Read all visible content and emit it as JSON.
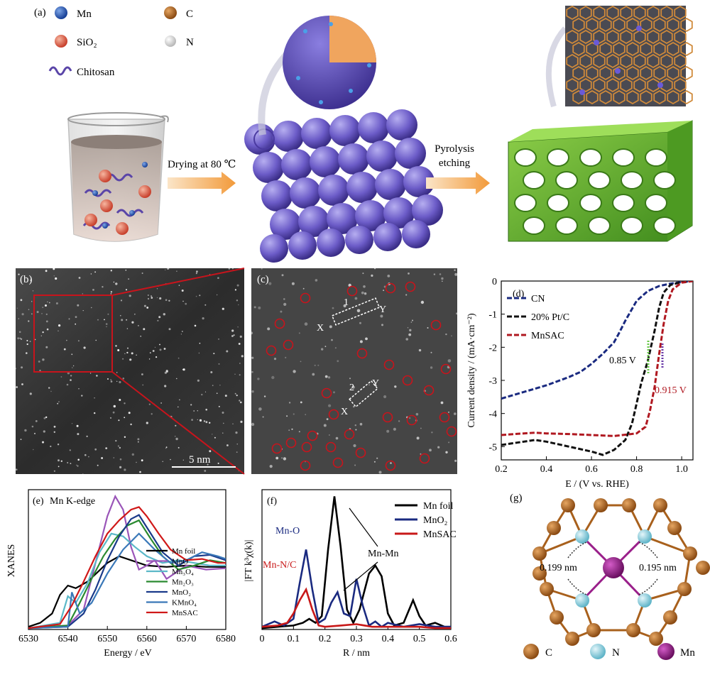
{
  "panel_a": {
    "tag": "(a)",
    "legend": [
      {
        "label": "Mn",
        "color": "#1f4fa8"
      },
      {
        "label": "SiO₂",
        "color": "#d9573f"
      },
      {
        "label": "Chitosan",
        "color": "#5a45a8"
      },
      {
        "label": "C",
        "color": "#a8601c"
      },
      {
        "label": "N",
        "color": "#eeeeee"
      }
    ],
    "step1": "Drying at 80 ℃",
    "step2_line1": "Pyrolysis",
    "step2_line2": "etching"
  },
  "panel_b": {
    "tag": "(b)",
    "scale": "5 nm"
  },
  "panel_c": {
    "tag": "(c)",
    "pairs": [
      {
        "num": "1",
        "x": "X",
        "y": "Y"
      },
      {
        "num": "2",
        "x": "X",
        "y": "Y"
      }
    ]
  },
  "chart_data": [
    {
      "panel": "(d)",
      "type": "line",
      "xlabel": "E / (V vs. RHE)",
      "ylabel": "Current density / (mA·cm⁻²)",
      "xlim": [
        0.2,
        1.05
      ],
      "ylim": [
        -5.4,
        0
      ],
      "xticks": [
        "0.2",
        "0.4",
        "0.6",
        "0.8",
        "1.0"
      ],
      "yticks": [
        "0",
        "-1",
        "-2",
        "-3",
        "-4",
        "-5"
      ],
      "legend_position": "top-left",
      "annotations": [
        "0.85 V",
        "0.915 V"
      ],
      "series": [
        {
          "name": "CN",
          "color": "#1a2a80",
          "x": [
            0.2,
            0.3,
            0.4,
            0.5,
            0.55,
            0.6,
            0.65,
            0.7,
            0.72,
            0.75,
            0.8,
            0.85,
            0.9,
            0.95,
            1.0,
            1.05
          ],
          "y": [
            -3.55,
            -3.35,
            -3.15,
            -2.9,
            -2.75,
            -2.5,
            -2.2,
            -1.85,
            -1.6,
            -1.2,
            -0.6,
            -0.3,
            -0.15,
            -0.08,
            -0.03,
            0
          ]
        },
        {
          "name": "20% Pt/C",
          "color": "#111111",
          "x": [
            0.2,
            0.3,
            0.35,
            0.4,
            0.5,
            0.6,
            0.65,
            0.7,
            0.75,
            0.78,
            0.8,
            0.82,
            0.85,
            0.88,
            0.9,
            0.92,
            0.95,
            1.0,
            1.05
          ],
          "y": [
            -4.95,
            -4.85,
            -4.8,
            -4.85,
            -5.0,
            -5.15,
            -5.25,
            -5.1,
            -4.8,
            -4.3,
            -3.7,
            -3.1,
            -2.4,
            -1.5,
            -0.8,
            -0.35,
            -0.12,
            -0.03,
            0
          ]
        },
        {
          "name": "MnSAC",
          "color": "#b01820",
          "x": [
            0.2,
            0.3,
            0.35,
            0.4,
            0.5,
            0.6,
            0.7,
            0.8,
            0.84,
            0.86,
            0.88,
            0.9,
            0.92,
            0.94,
            0.96,
            1.0,
            1.05
          ],
          "y": [
            -4.65,
            -4.6,
            -4.58,
            -4.6,
            -4.62,
            -4.65,
            -4.68,
            -4.6,
            -4.4,
            -3.9,
            -3.2,
            -2.2,
            -1.3,
            -0.6,
            -0.25,
            -0.05,
            0
          ]
        }
      ]
    },
    {
      "panel": "(e)",
      "title": "Mn K-edge",
      "type": "line",
      "xlabel": "Energy / eV",
      "ylabel": "XANES",
      "xlim": [
        6530,
        6580
      ],
      "ylim": [
        0,
        1.05
      ],
      "xticks": [
        "6530",
        "6540",
        "6550",
        "6560",
        "6570",
        "6580"
      ],
      "legend_position": "bottom-right",
      "series": [
        {
          "name": "Mn foil",
          "color": "#000000",
          "x": [
            6530,
            6533,
            6536,
            6538,
            6540,
            6542,
            6545,
            6550,
            6553,
            6556,
            6560,
            6565,
            6570,
            6575,
            6580
          ],
          "y": [
            0.02,
            0.05,
            0.12,
            0.26,
            0.33,
            0.31,
            0.36,
            0.5,
            0.55,
            0.52,
            0.48,
            0.47,
            0.48,
            0.47,
            0.47
          ]
        },
        {
          "name": "MnO",
          "color": "#9a55b8",
          "x": [
            6530,
            6540,
            6544,
            6547,
            6550,
            6552,
            6554,
            6556,
            6558,
            6560,
            6562,
            6565,
            6570,
            6575,
            6580
          ],
          "y": [
            0.01,
            0.03,
            0.15,
            0.5,
            0.85,
            1.0,
            0.9,
            0.62,
            0.45,
            0.48,
            0.52,
            0.38,
            0.48,
            0.45,
            0.46
          ]
        },
        {
          "name": "Mn₃O₄",
          "color": "#5bb8c8",
          "x": [
            6530,
            6538,
            6540,
            6542,
            6545,
            6548,
            6551,
            6554,
            6557,
            6560,
            6564,
            6568,
            6572,
            6576,
            6580
          ],
          "y": [
            0.01,
            0.05,
            0.25,
            0.2,
            0.35,
            0.58,
            0.72,
            0.7,
            0.62,
            0.55,
            0.5,
            0.52,
            0.5,
            0.48,
            0.48
          ]
        },
        {
          "name": "Mn₂O₃",
          "color": "#2a8a30",
          "x": [
            6530,
            6540,
            6543,
            6546,
            6549,
            6552,
            6555,
            6558,
            6561,
            6564,
            6568,
            6572,
            6576,
            6580
          ],
          "y": [
            0.01,
            0.03,
            0.2,
            0.38,
            0.55,
            0.68,
            0.78,
            0.82,
            0.68,
            0.55,
            0.45,
            0.48,
            0.52,
            0.5
          ]
        },
        {
          "name": "MnO₂",
          "color": "#1a3a8a",
          "x": [
            6530,
            6540,
            6544,
            6547,
            6550,
            6553,
            6556,
            6558,
            6561,
            6564,
            6568,
            6572,
            6576,
            6580
          ],
          "y": [
            0.01,
            0.02,
            0.12,
            0.3,
            0.52,
            0.7,
            0.83,
            0.86,
            0.72,
            0.58,
            0.48,
            0.55,
            0.56,
            0.52
          ]
        },
        {
          "name": "KMnO₄",
          "color": "#3a78b8",
          "x": [
            6530,
            6540,
            6541,
            6543,
            6546,
            6550,
            6554,
            6558,
            6562,
            6566,
            6570,
            6574,
            6578,
            6580
          ],
          "y": [
            0.01,
            0.02,
            0.28,
            0.12,
            0.2,
            0.42,
            0.6,
            0.72,
            0.6,
            0.5,
            0.52,
            0.58,
            0.55,
            0.53
          ]
        },
        {
          "name": "MnSAC",
          "color": "#d01818",
          "x": [
            6530,
            6538,
            6541,
            6544,
            6547,
            6550,
            6553,
            6556,
            6558,
            6560,
            6563,
            6566,
            6570,
            6574,
            6578,
            6580
          ],
          "y": [
            0.01,
            0.04,
            0.18,
            0.36,
            0.55,
            0.72,
            0.82,
            0.9,
            0.92,
            0.85,
            0.72,
            0.6,
            0.52,
            0.53,
            0.5,
            0.5
          ]
        }
      ]
    },
    {
      "panel": "(f)",
      "type": "line",
      "xlabel": "R / nm",
      "ylabel": "|FT k³χ(k)|",
      "xlim": [
        0,
        0.6
      ],
      "ylim": [
        0,
        1.05
      ],
      "xticks": [
        "0",
        "0.1",
        "0.2",
        "0.3",
        "0.4",
        "0.5",
        "0.6"
      ],
      "legend_position": "top-right",
      "annotations": [
        "Mn-O",
        "Mn-N/C",
        "Mn-Mn"
      ],
      "series": [
        {
          "name": "Mn foil",
          "color": "#000000",
          "x": [
            0,
            0.05,
            0.1,
            0.13,
            0.15,
            0.17,
            0.19,
            0.21,
            0.23,
            0.25,
            0.27,
            0.29,
            0.31,
            0.34,
            0.36,
            0.38,
            0.4,
            0.42,
            0.45,
            0.48,
            0.5,
            0.52,
            0.55,
            0.58,
            0.6
          ],
          "y": [
            0.01,
            0.02,
            0.03,
            0.05,
            0.08,
            0.05,
            0.1,
            0.6,
            1.0,
            0.62,
            0.15,
            0.05,
            0.15,
            0.42,
            0.48,
            0.4,
            0.12,
            0.03,
            0.05,
            0.22,
            0.1,
            0.03,
            0.05,
            0.02,
            0.02
          ]
        },
        {
          "name": "MnO₂",
          "color": "#1a2a80",
          "x": [
            0,
            0.04,
            0.07,
            0.1,
            0.12,
            0.14,
            0.16,
            0.18,
            0.2,
            0.22,
            0.24,
            0.26,
            0.28,
            0.3,
            0.32,
            0.34,
            0.36,
            0.38,
            0.4,
            0.45,
            0.5,
            0.55,
            0.6
          ],
          "y": [
            0.02,
            0.06,
            0.03,
            0.08,
            0.35,
            0.6,
            0.3,
            0.05,
            0.08,
            0.2,
            0.28,
            0.12,
            0.1,
            0.38,
            0.18,
            0.03,
            0.06,
            0.02,
            0.05,
            0.02,
            0.04,
            0.02,
            0.02
          ]
        },
        {
          "name": "MnSAC",
          "color": "#c81818",
          "x": [
            0,
            0.05,
            0.08,
            0.1,
            0.12,
            0.14,
            0.16,
            0.18,
            0.2,
            0.25,
            0.3,
            0.35,
            0.4,
            0.45,
            0.5,
            0.55,
            0.6
          ],
          "y": [
            0.02,
            0.03,
            0.05,
            0.12,
            0.22,
            0.3,
            0.15,
            0.03,
            0.02,
            0.03,
            0.04,
            0.02,
            0.02,
            0.02,
            0.02,
            0.01,
            0.01
          ]
        }
      ]
    }
  ],
  "panel_g": {
    "tag": "(g)",
    "dist_left": "0.199 nm",
    "dist_right": "0.195 nm",
    "legend": [
      {
        "label": "C",
        "color": "#a8601c"
      },
      {
        "label": "N",
        "color": "#7ec8d8"
      },
      {
        "label": "Mn",
        "color": "#9a1f8a"
      }
    ]
  }
}
